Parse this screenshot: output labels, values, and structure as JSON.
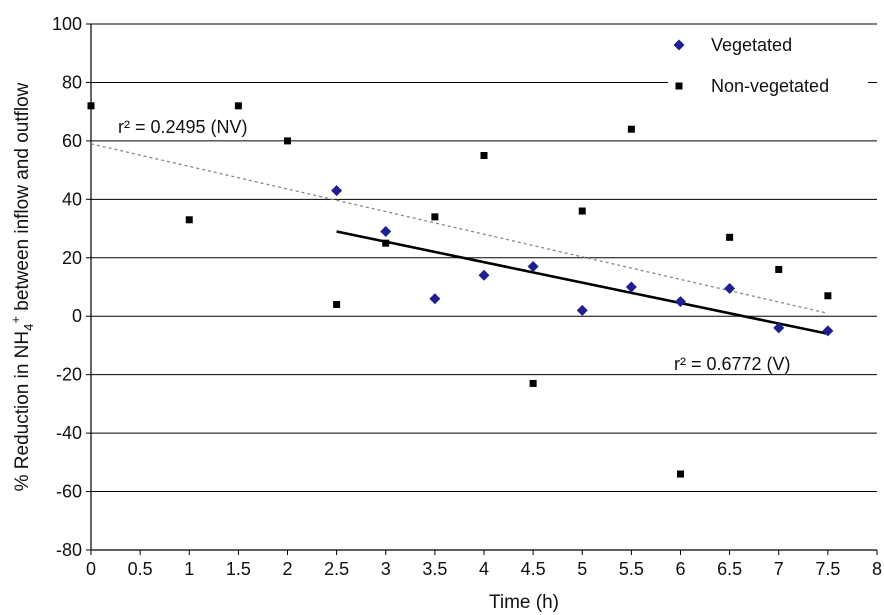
{
  "chart_data": {
    "type": "scatter",
    "xlabel": "Time (h)",
    "ylabel_parts": {
      "pre": "% Reduction in NH",
      "sub": "4",
      "sup": "+",
      "post": " between inflow and outflow"
    },
    "xlim": [
      0,
      8
    ],
    "ylim": [
      -80,
      100
    ],
    "x_ticks": [
      0,
      0.5,
      1,
      1.5,
      2,
      2.5,
      3,
      3.5,
      4,
      4.5,
      5,
      5.5,
      6,
      6.5,
      7,
      7.5,
      8
    ],
    "x_tick_labels": [
      "0",
      "0.5",
      "1",
      "1.5",
      "2",
      "2.5",
      "3",
      "3.5",
      "4",
      "4.5",
      "5",
      "5.5",
      "6",
      "6.5",
      "7",
      "7.5",
      "8"
    ],
    "y_ticks": [
      -80,
      -60,
      -40,
      -20,
      0,
      20,
      40,
      60,
      80,
      100
    ],
    "y_tick_labels": [
      "-80",
      "-60",
      "-40",
      "-20",
      "0",
      "20",
      "40",
      "60",
      "80",
      "100"
    ],
    "grid": "horizontal",
    "legend_position": "top-right",
    "series": [
      {
        "name": "Vegetated",
        "marker": "diamond",
        "color": "#1f1f8f",
        "points": [
          {
            "x": 2.5,
            "y": 43
          },
          {
            "x": 3.0,
            "y": 29
          },
          {
            "x": 3.5,
            "y": 6
          },
          {
            "x": 4.0,
            "y": 14
          },
          {
            "x": 4.5,
            "y": 17
          },
          {
            "x": 5.0,
            "y": 2
          },
          {
            "x": 5.5,
            "y": 10
          },
          {
            "x": 6.0,
            "y": 5
          },
          {
            "x": 6.5,
            "y": 9.5
          },
          {
            "x": 7.0,
            "y": -4
          },
          {
            "x": 7.5,
            "y": -5
          }
        ]
      },
      {
        "name": "Non-vegetated",
        "marker": "square",
        "color": "#000000",
        "points": [
          {
            "x": 0.0,
            "y": 72
          },
          {
            "x": 1.0,
            "y": 33
          },
          {
            "x": 1.5,
            "y": 72
          },
          {
            "x": 2.0,
            "y": 60
          },
          {
            "x": 2.5,
            "y": 4
          },
          {
            "x": 3.0,
            "y": 25
          },
          {
            "x": 3.5,
            "y": 34
          },
          {
            "x": 4.0,
            "y": 55
          },
          {
            "x": 4.5,
            "y": -23
          },
          {
            "x": 5.0,
            "y": 36
          },
          {
            "x": 5.5,
            "y": 64
          },
          {
            "x": 6.0,
            "y": -54
          },
          {
            "x": 6.5,
            "y": 27
          },
          {
            "x": 7.0,
            "y": 16
          },
          {
            "x": 7.5,
            "y": 7
          }
        ]
      }
    ],
    "trendlines": [
      {
        "series": "Non-vegetated",
        "style": "dashed",
        "color": "#888888",
        "x_start": 0,
        "y_start": 59,
        "x_end": 7.5,
        "y_end": 1,
        "label": "r² = 0.2495 (NV)"
      },
      {
        "series": "Vegetated",
        "style": "solid",
        "color": "#000000",
        "x_start": 2.5,
        "y_start": 29,
        "x_end": 7.5,
        "y_end": -6,
        "label": "r² = 0.6772 (V)"
      }
    ]
  }
}
